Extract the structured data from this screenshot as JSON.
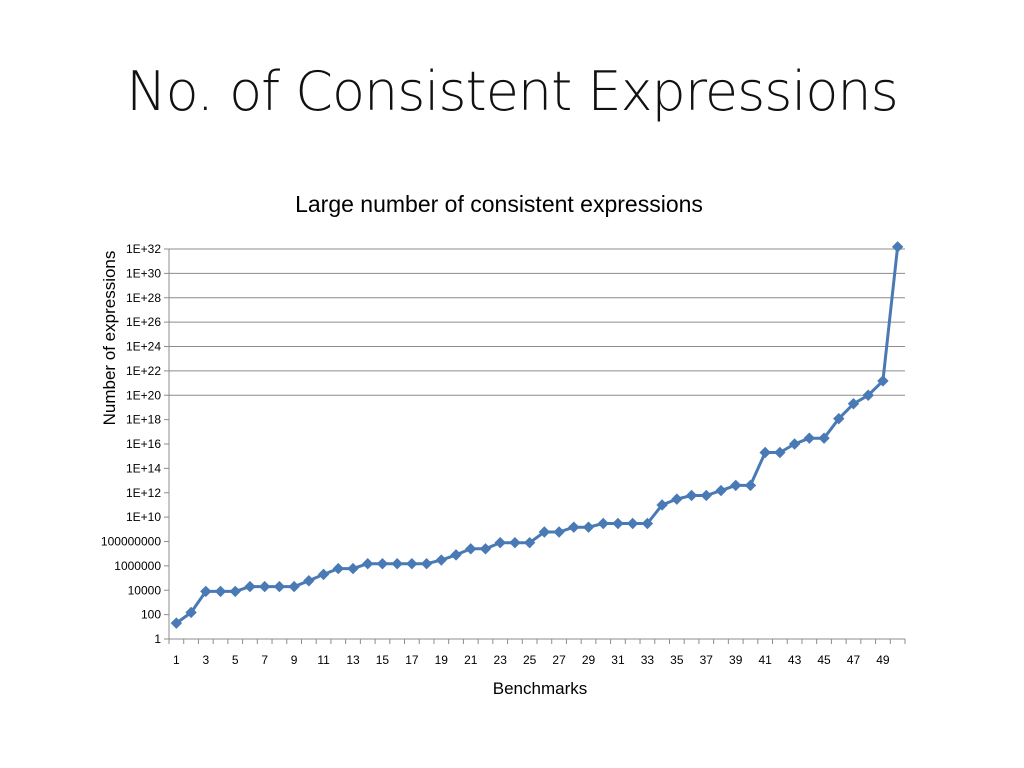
{
  "slide": {
    "title": "No. of Consistent Expressions"
  },
  "chart_data": {
    "type": "line",
    "title": "Large number of consistent expressions",
    "xlabel": "Benchmarks",
    "ylabel": "Number of expressions",
    "y_scale": "log10",
    "ylim": [
      1,
      1e+32
    ],
    "y_tick_labels": [
      "1",
      "100",
      "10000",
      "1000000",
      "100000000",
      "1E+10",
      "1E+12",
      "1E+14",
      "1E+16",
      "1E+18",
      "1E+20",
      "1E+22",
      "1E+24",
      "1E+26",
      "1E+28",
      "1E+30",
      "1E+32"
    ],
    "x_tick_labels": [
      "1",
      "3",
      "5",
      "7",
      "9",
      "11",
      "13",
      "15",
      "17",
      "19",
      "21",
      "23",
      "25",
      "27",
      "29",
      "31",
      "33",
      "35",
      "37",
      "39",
      "41",
      "43",
      "45",
      "47",
      "49"
    ],
    "grid": "horizontal (1E+20 and above)",
    "legend": "none",
    "colors": {
      "series": "#4a7ab5",
      "grid": "#8c8c8c",
      "axis": "#8c8c8c"
    },
    "x": [
      1,
      2,
      3,
      4,
      5,
      6,
      7,
      8,
      9,
      10,
      11,
      12,
      13,
      14,
      15,
      16,
      17,
      18,
      19,
      20,
      21,
      22,
      23,
      24,
      25,
      26,
      27,
      28,
      29,
      30,
      31,
      32,
      33,
      34,
      35,
      36,
      37,
      38,
      39,
      40,
      41,
      42,
      43,
      44,
      45,
      46,
      47,
      48,
      49,
      50
    ],
    "values": [
      20,
      150,
      8000,
      8000,
      8000,
      20000,
      20000,
      20000,
      20000,
      60000,
      200000,
      600000,
      600000,
      1500000,
      1500000,
      1500000,
      1500000,
      1500000,
      3000000,
      8000000,
      25000000,
      25000000,
      80000000,
      80000000,
      80000000,
      600000000.0,
      600000000.0,
      1500000000.0,
      1500000000.0,
      3000000000.0,
      3000000000.0,
      3000000000.0,
      3000000000.0,
      100000000000.0,
      300000000000.0,
      600000000000.0,
      600000000000.0,
      1500000000000.0,
      4000000000000.0,
      4000000000000.0,
      2000000000000000.0,
      2000000000000000.0,
      1e+16,
      3e+16,
      3e+16,
      1.2e+18,
      2e+19,
      1e+20,
      1.5e+21,
      1.5e+32
    ]
  }
}
